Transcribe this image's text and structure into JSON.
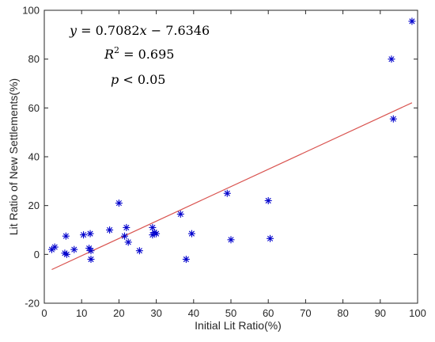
{
  "chart_data": {
    "type": "scatter",
    "xlabel": "Initial Lit Ratio(%)",
    "ylabel": "Lit Ratio of New Settlements(%)",
    "xlim": [
      0,
      100
    ],
    "ylim": [
      -20,
      100
    ],
    "x_ticks": [
      "0",
      "10",
      "20",
      "30",
      "40",
      "50",
      "60",
      "70",
      "80",
      "90",
      "100"
    ],
    "y_ticks": [
      "-20",
      "0",
      "20",
      "40",
      "60",
      "80",
      "100"
    ],
    "grid": false,
    "colors": {
      "points": "#0000cc",
      "fit_line": "#d9534f",
      "axis": "#262626"
    },
    "marker": "asterisk",
    "points": [
      {
        "x": 2.0,
        "y": 2.0
      },
      {
        "x": 2.8,
        "y": 3.0
      },
      {
        "x": 5.5,
        "y": 0.5
      },
      {
        "x": 5.8,
        "y": 7.5
      },
      {
        "x": 6.0,
        "y": 0.0
      },
      {
        "x": 8.0,
        "y": 2.0
      },
      {
        "x": 10.5,
        "y": 8.0
      },
      {
        "x": 12.0,
        "y": 2.5
      },
      {
        "x": 12.3,
        "y": 8.5
      },
      {
        "x": 12.5,
        "y": 1.5
      },
      {
        "x": 12.5,
        "y": -2.0
      },
      {
        "x": 17.5,
        "y": 10.0
      },
      {
        "x": 20.0,
        "y": 21.0
      },
      {
        "x": 21.5,
        "y": 7.5
      },
      {
        "x": 22.0,
        "y": 11.0
      },
      {
        "x": 22.5,
        "y": 5.0
      },
      {
        "x": 25.5,
        "y": 1.5
      },
      {
        "x": 29.0,
        "y": 11.0
      },
      {
        "x": 29.0,
        "y": 8.0
      },
      {
        "x": 29.5,
        "y": 9.0
      },
      {
        "x": 30.0,
        "y": 8.5
      },
      {
        "x": 36.5,
        "y": 16.5
      },
      {
        "x": 38.0,
        "y": -2.0
      },
      {
        "x": 39.5,
        "y": 8.5
      },
      {
        "x": 49.0,
        "y": 25.0
      },
      {
        "x": 50.0,
        "y": 6.0
      },
      {
        "x": 60.0,
        "y": 22.0
      },
      {
        "x": 60.5,
        "y": 6.5
      },
      {
        "x": 93.0,
        "y": 80.0
      },
      {
        "x": 93.5,
        "y": 55.5
      },
      {
        "x": 98.5,
        "y": 95.5
      }
    ],
    "fit": {
      "slope": 0.7082,
      "intercept": -7.6346,
      "x_range": [
        2,
        98.5
      ]
    },
    "annotations": {
      "equation": {
        "lhs": "y",
        "equals": " = 0.7082",
        "var": "x",
        "rest": " − 7.6346"
      },
      "r_squared": {
        "var": "R",
        "exp": "2",
        "rest": " = 0.695"
      },
      "p_value": {
        "var": "p",
        "rest": " < 0.05"
      }
    }
  }
}
